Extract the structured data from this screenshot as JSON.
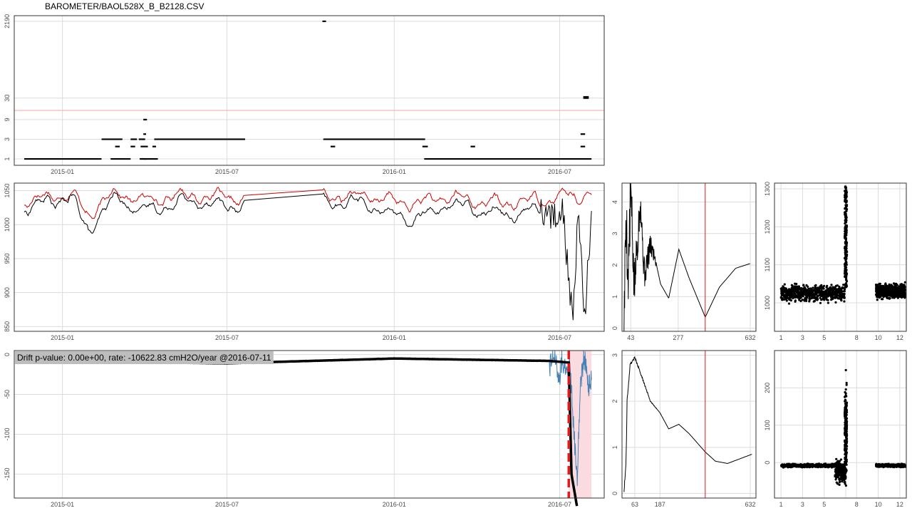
{
  "title": "BAROMETER/BAOL528X_B_B2128.CSV",
  "colors": {
    "panel_border": "#333333",
    "grid": "#dcdcdc",
    "raw": "#000000",
    "adjusted": "#cc0000",
    "drift": "#4682b4",
    "reference": "#e31a1c",
    "band": "#fadbe0",
    "annotation_bg": "#bdbdbd"
  },
  "chart_data": [
    {
      "id": "interval-plot",
      "type": "scatter",
      "x_axis": "time",
      "xticks": [
        "2015-01",
        "2015-07",
        "2016-01",
        "2016-07"
      ],
      "xtick_dates": [
        "2015-01-01",
        "2015-07-01",
        "2016-01-01",
        "2016-07-01"
      ],
      "yticks": [
        "1",
        "3",
        "9",
        "30",
        "2190"
      ],
      "ytick_values": [
        1,
        3,
        9,
        30,
        2190
      ],
      "y_scale": "log",
      "x_range": [
        "2014-11-09",
        "2016-08-19"
      ],
      "y_range": [
        0.7,
        3000
      ],
      "reference_line": 15,
      "segments": [
        {
          "start": "2014-11-20",
          "end": "2015-02-13",
          "value": 1
        },
        {
          "start": "2015-02-13",
          "end": "2015-03-08",
          "value": 3
        },
        {
          "start": "2015-02-23",
          "end": "2015-03-17",
          "value": 1
        },
        {
          "start": "2015-02-28",
          "end": "2015-03-05",
          "value": 2
        },
        {
          "start": "2015-03-17",
          "end": "2015-03-24",
          "value": 3
        },
        {
          "start": "2015-03-17",
          "end": "2015-03-22",
          "value": 2
        },
        {
          "start": "2015-03-26",
          "end": "2015-04-02",
          "value": 3
        },
        {
          "start": "2015-03-31",
          "end": "2015-04-04",
          "value": 9
        },
        {
          "start": "2015-03-31",
          "end": "2015-04-03",
          "value": 4
        },
        {
          "start": "2015-03-27",
          "end": "2015-04-03",
          "value": 1
        },
        {
          "start": "2015-03-28",
          "end": "2015-04-05",
          "value": 2
        },
        {
          "start": "2015-04-01",
          "end": "2015-04-16",
          "value": 1
        },
        {
          "start": "2015-04-10",
          "end": "2015-04-14",
          "value": 2
        },
        {
          "start": "2015-04-12",
          "end": "2015-07-21",
          "value": 3
        },
        {
          "start": "2015-10-14",
          "end": "2015-10-18",
          "value": 2190
        },
        {
          "start": "2015-10-15",
          "end": "2016-02-04",
          "value": 3
        },
        {
          "start": "2015-10-23",
          "end": "2015-10-28",
          "value": 2
        },
        {
          "start": "2016-02-01",
          "end": "2016-02-07",
          "value": 2
        },
        {
          "start": "2016-02-03",
          "end": "2016-08-05",
          "value": 1
        },
        {
          "start": "2016-03-25",
          "end": "2016-03-30",
          "value": 2
        },
        {
          "start": "2016-07-24",
          "end": "2016-07-29",
          "value": 4
        },
        {
          "start": "2016-07-24",
          "end": "2016-07-29",
          "value": 2
        },
        {
          "start": "2016-07-27",
          "end": "2016-08-02",
          "value": 30
        },
        {
          "start": "2016-07-27",
          "end": "2016-08-02",
          "value": 32
        }
      ]
    },
    {
      "id": "pressure-series",
      "type": "line",
      "x_axis": "time",
      "xticks": [
        "2015-01",
        "2015-07",
        "2016-01",
        "2016-07"
      ],
      "xtick_dates": [
        "2015-01-01",
        "2015-07-01",
        "2016-01-01",
        "2016-07-01"
      ],
      "yticks": [
        "850",
        "900",
        "950",
        "1000",
        "1050"
      ],
      "ytick_values": [
        850,
        900,
        950,
        1000,
        1050
      ],
      "x_range": [
        "2014-11-09",
        "2016-08-19"
      ],
      "y_range": [
        843,
        1061
      ],
      "series": [
        {
          "color": "#cc0000",
          "anchors": [
            [
              "2014-11-20",
              1035
            ],
            [
              "2015-01-10",
              1048
            ],
            [
              "2015-01-30",
              1015
            ],
            [
              "2015-03-01",
              1048
            ],
            [
              "2015-04-01",
              1035
            ],
            [
              "2015-05-15",
              1045
            ],
            [
              "2015-07-20",
              1036
            ],
            [
              "2015-10-14",
              1039
            ],
            [
              "2015-11-20",
              1044
            ],
            [
              "2016-01-20",
              1030
            ],
            [
              "2016-03-01",
              1040
            ],
            [
              "2016-05-01",
              1030
            ],
            [
              "2016-06-20",
              1040
            ],
            [
              "2016-07-20",
              1042
            ],
            [
              "2016-08-05",
              1045
            ]
          ]
        },
        {
          "color": "#000000",
          "anchors": [
            [
              "2014-11-20",
              1025
            ],
            [
              "2015-01-10",
              1040
            ],
            [
              "2015-01-30",
              990
            ],
            [
              "2015-03-01",
              1040
            ],
            [
              "2015-04-01",
              1020
            ],
            [
              "2015-05-15",
              1036
            ],
            [
              "2015-07-20",
              1025
            ],
            [
              "2015-10-14",
              1029
            ],
            [
              "2015-11-20",
              1035
            ],
            [
              "2016-01-20",
              1005
            ],
            [
              "2016-03-01",
              1030
            ],
            [
              "2016-05-01",
              1018
            ],
            [
              "2016-06-20",
              1022
            ],
            [
              "2016-07-05",
              1010
            ],
            [
              "2016-07-15",
              850
            ],
            [
              "2016-07-22",
              1040
            ],
            [
              "2016-07-28",
              860
            ],
            [
              "2016-08-05",
              1010
            ]
          ]
        }
      ]
    },
    {
      "id": "acf-pressure",
      "type": "line",
      "xticks": [
        "43",
        "277",
        "632"
      ],
      "xtick_values": [
        43,
        277,
        632
      ],
      "yticks": [
        "0",
        "1",
        "2",
        "3",
        "4"
      ],
      "ytick_values": [
        0,
        1,
        2,
        3,
        4
      ],
      "x_range": [
        0,
        660
      ],
      "y_range": [
        -0.1,
        4.6
      ],
      "reference_vline": 410,
      "anchors": [
        [
          10,
          0.1
        ],
        [
          20,
          3.8
        ],
        [
          30,
          1.4
        ],
        [
          43,
          4.45
        ],
        [
          60,
          1.2
        ],
        [
          90,
          4.1
        ],
        [
          110,
          1.7
        ],
        [
          140,
          2.6
        ],
        [
          160,
          2.3
        ],
        [
          190,
          1.4
        ],
        [
          230,
          0.95
        ],
        [
          280,
          2.5
        ],
        [
          330,
          1.6
        ],
        [
          410,
          0.35
        ],
        [
          480,
          1.3
        ],
        [
          560,
          1.9
        ],
        [
          632,
          2.05
        ]
      ]
    },
    {
      "id": "monthly-pressure",
      "type": "scatter",
      "xticks": [
        "1",
        "3",
        "5",
        "8",
        "10",
        "12"
      ],
      "xtick_values": [
        1,
        3,
        5,
        8,
        10,
        12
      ],
      "yticks": [
        "1000",
        "1100",
        "1200",
        "1300"
      ],
      "ytick_values": [
        1000,
        1100,
        1200,
        1300
      ],
      "x_range": [
        0.4,
        12.6
      ],
      "y_range": [
        925,
        1315
      ],
      "reference_vline": 7,
      "clusters": [
        {
          "x_from": 1,
          "x_to": 6.9,
          "center": 1025,
          "spread": 30
        },
        {
          "x_from": 9.8,
          "x_to": 12.5,
          "center": 1030,
          "spread": 25
        },
        {
          "x_from": 6.9,
          "x_to": 7.1,
          "center": 1120,
          "spread": 190
        }
      ]
    },
    {
      "id": "drift-series",
      "type": "line",
      "x_axis": "time",
      "xticks": [
        "2015-01",
        "2015-07",
        "2016-01",
        "2016-07"
      ],
      "xtick_dates": [
        "2015-01-01",
        "2015-07-01",
        "2016-01-01",
        "2016-07-01"
      ],
      "yticks": [
        "-150",
        "-100",
        "-50",
        "0"
      ],
      "ytick_values": [
        -150,
        -100,
        -50,
        0
      ],
      "x_range": [
        "2014-11-09",
        "2016-08-19"
      ],
      "y_range": [
        -180,
        5
      ],
      "annotation": "Drift p-value: 0.00e+00, rate: -10622.83 cmH2O/year @2016-07-11",
      "changepoint": "2016-07-11",
      "band": [
        "2016-07-11",
        "2016-08-05"
      ],
      "trend_anchors": [
        [
          "2014-11-20",
          -8
        ],
        [
          "2015-07-01",
          -11
        ],
        [
          "2016-01-01",
          -5
        ],
        [
          "2016-06-20",
          -8
        ],
        [
          "2016-07-11",
          -10
        ],
        [
          "2016-07-14",
          -150
        ],
        [
          "2016-07-20",
          -190
        ]
      ],
      "noise_anchors": [
        [
          "2016-06-20",
          -20
        ],
        [
          "2016-06-25",
          5
        ],
        [
          "2016-06-30",
          -40
        ],
        [
          "2016-07-04",
          0
        ],
        [
          "2016-07-08",
          -30
        ],
        [
          "2016-07-12",
          -5
        ],
        [
          "2016-07-20",
          -160
        ],
        [
          "2016-07-24",
          -40
        ],
        [
          "2016-07-28",
          0
        ],
        [
          "2016-08-01",
          -40
        ],
        [
          "2016-08-05",
          -30
        ]
      ]
    },
    {
      "id": "acf-drift",
      "type": "line",
      "xticks": [
        "63",
        "187",
        "632"
      ],
      "xtick_values": [
        63,
        187,
        632
      ],
      "yticks": [
        "0",
        "1",
        "2",
        "3"
      ],
      "ytick_values": [
        0,
        1,
        2,
        3
      ],
      "x_range": [
        0,
        660
      ],
      "y_range": [
        -0.1,
        3.1
      ],
      "reference_vline": 410,
      "anchors": [
        [
          10,
          0.05
        ],
        [
          20,
          0.7
        ],
        [
          25,
          2.0
        ],
        [
          40,
          2.8
        ],
        [
          63,
          2.95
        ],
        [
          100,
          2.5
        ],
        [
          140,
          2.0
        ],
        [
          187,
          1.75
        ],
        [
          230,
          1.4
        ],
        [
          280,
          1.5
        ],
        [
          330,
          1.3
        ],
        [
          410,
          0.9
        ],
        [
          460,
          0.7
        ],
        [
          520,
          0.65
        ],
        [
          580,
          0.75
        ],
        [
          640,
          0.85
        ]
      ]
    },
    {
      "id": "monthly-drift",
      "type": "scatter",
      "xticks": [
        "1",
        "3",
        "5",
        "8",
        "10",
        "12"
      ],
      "xtick_values": [
        1,
        3,
        5,
        8,
        10,
        12
      ],
      "yticks": [
        "0",
        "100",
        "200"
      ],
      "ytick_values": [
        0,
        100,
        200
      ],
      "x_range": [
        0.4,
        12.6
      ],
      "y_range": [
        -95,
        300
      ],
      "reference_vline": 7,
      "clusters": [
        {
          "x_from": 1,
          "x_to": 6.9,
          "center": -8,
          "spread": 6
        },
        {
          "x_from": 9.8,
          "x_to": 12.5,
          "center": -8,
          "spread": 5
        },
        {
          "x_from": 6.0,
          "x_to": 7.0,
          "center": -25,
          "spread": 40
        },
        {
          "x_from": 6.9,
          "x_to": 7.1,
          "center": 80,
          "spread": 180
        }
      ]
    }
  ]
}
